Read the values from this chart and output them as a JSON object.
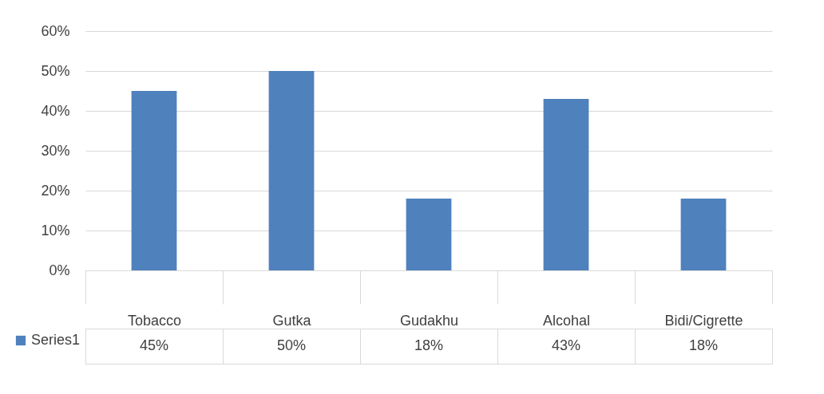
{
  "chart_data": {
    "type": "bar",
    "categories": [
      "Tobacco",
      "Gutka",
      "Gudakhu",
      "Alcohal",
      "Bidi/Cigrette"
    ],
    "series": [
      {
        "name": "Series1",
        "color": "#4f81bd",
        "values": [
          45,
          50,
          18,
          43,
          18
        ],
        "value_labels": [
          "45%",
          "50%",
          "18%",
          "43%",
          "18%"
        ]
      }
    ],
    "ylim": [
      0,
      60
    ],
    "yticks": [
      {
        "value": 0,
        "label": "0%"
      },
      {
        "value": 10,
        "label": "10%"
      },
      {
        "value": 20,
        "label": "20%"
      },
      {
        "value": 30,
        "label": "30%"
      },
      {
        "value": 40,
        "label": "40%"
      },
      {
        "value": 50,
        "label": "50%"
      },
      {
        "value": 60,
        "label": "60%"
      }
    ],
    "grid": "y",
    "legend": "bottom left"
  }
}
